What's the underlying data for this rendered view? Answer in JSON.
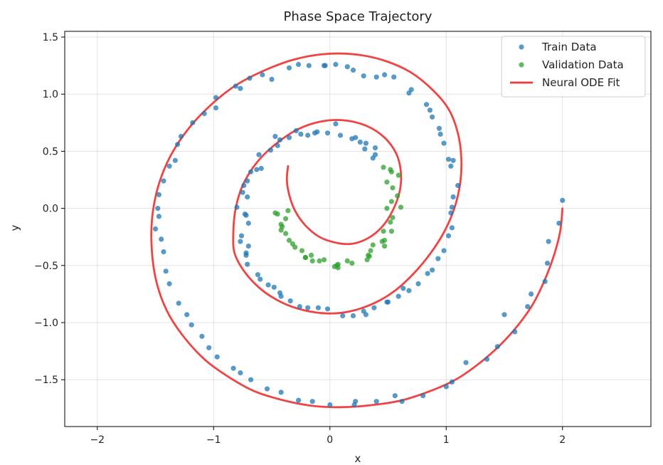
{
  "chart_data": {
    "type": "scatter",
    "title": "Phase Space Trajectory",
    "xlabel": "x",
    "ylabel": "y",
    "xlim": [
      -2.28,
      2.76
    ],
    "ylim": [
      -1.91,
      1.55
    ],
    "xticks": [
      -2,
      -1,
      0,
      1,
      2
    ],
    "yticks": [
      -1.5,
      -1.0,
      -0.5,
      0.0,
      0.5,
      1.0,
      1.5
    ],
    "xtick_labels": [
      "−2",
      "−1",
      "0",
      "1",
      "2"
    ],
    "ytick_labels": [
      "−1.5",
      "−1.0",
      "−0.5",
      "0.0",
      "0.5",
      "1.0",
      "1.5"
    ],
    "grid": true,
    "legend_position": "top-right",
    "series": [
      {
        "name": "Train Data",
        "kind": "points",
        "color": "#1f77b4",
        "points": [
          [
            2.0,
            0.07
          ],
          [
            1.97,
            -0.13
          ],
          [
            1.88,
            -0.29
          ],
          [
            1.87,
            -0.48
          ],
          [
            1.85,
            -0.64
          ],
          [
            1.73,
            -0.75
          ],
          [
            1.7,
            -0.86
          ],
          [
            1.59,
            -1.08
          ],
          [
            1.5,
            -0.93
          ],
          [
            1.44,
            -1.21
          ],
          [
            1.35,
            -1.32
          ],
          [
            1.17,
            -1.35
          ],
          [
            1.05,
            -1.52
          ],
          [
            1.0,
            -1.56
          ],
          [
            0.8,
            -1.64
          ],
          [
            0.62,
            -1.69
          ],
          [
            0.56,
            -1.64
          ],
          [
            0.4,
            -1.69
          ],
          [
            0.22,
            -1.69
          ],
          [
            0.21,
            -1.72
          ],
          [
            0.0,
            -1.72
          ],
          [
            -0.15,
            -1.69
          ],
          [
            -0.27,
            -1.68
          ],
          [
            -0.42,
            -1.61
          ],
          [
            -0.54,
            -1.58
          ],
          [
            -0.68,
            -1.5
          ],
          [
            -0.77,
            -1.44
          ],
          [
            -0.83,
            -1.4
          ],
          [
            -0.97,
            -1.3
          ],
          [
            -1.04,
            -1.22
          ],
          [
            -1.1,
            -1.12
          ],
          [
            -1.19,
            -1.02
          ],
          [
            -1.23,
            -0.93
          ],
          [
            -1.3,
            -0.83
          ],
          [
            -1.38,
            -0.66
          ],
          [
            -1.41,
            -0.55
          ],
          [
            -1.43,
            -0.38
          ],
          [
            -1.45,
            -0.27
          ],
          [
            -1.5,
            -0.18
          ],
          [
            -1.47,
            -0.07
          ],
          [
            -1.48,
            0.0
          ],
          [
            -1.47,
            0.12
          ],
          [
            -1.43,
            0.24
          ],
          [
            -1.38,
            0.37
          ],
          [
            -1.33,
            0.42
          ],
          [
            -1.31,
            0.56
          ],
          [
            -1.28,
            0.63
          ],
          [
            -1.18,
            0.75
          ],
          [
            -1.08,
            0.83
          ],
          [
            -0.98,
            0.88
          ],
          [
            -0.98,
            0.97
          ],
          [
            -0.81,
            1.07
          ],
          [
            -0.77,
            1.05
          ],
          [
            -0.69,
            1.14
          ],
          [
            -0.58,
            1.17
          ],
          [
            -0.5,
            1.13
          ],
          [
            -0.35,
            1.23
          ],
          [
            -0.27,
            1.26
          ],
          [
            -0.18,
            1.25
          ],
          [
            -0.05,
            1.25
          ],
          [
            -0.04,
            1.25
          ],
          [
            0.05,
            1.26
          ],
          [
            0.15,
            1.24
          ],
          [
            0.2,
            1.21
          ],
          [
            0.29,
            1.16
          ],
          [
            0.4,
            1.15
          ],
          [
            0.47,
            1.17
          ],
          [
            0.55,
            1.15
          ],
          [
            0.68,
            1.01
          ],
          [
            0.7,
            1.04
          ],
          [
            0.83,
            0.91
          ],
          [
            0.86,
            0.86
          ],
          [
            0.88,
            0.8
          ],
          [
            0.94,
            0.7
          ],
          [
            0.95,
            0.65
          ],
          [
            0.98,
            0.57
          ],
          [
            1.02,
            0.43
          ],
          [
            1.04,
            0.37
          ],
          [
            1.06,
            0.42
          ],
          [
            1.1,
            0.2
          ],
          [
            1.06,
            0.1
          ],
          [
            1.05,
            0.01
          ],
          [
            1.04,
            -0.04
          ],
          [
            1.05,
            -0.17
          ],
          [
            1.02,
            -0.24
          ],
          [
            0.98,
            -0.37
          ],
          [
            0.93,
            -0.44
          ],
          [
            0.88,
            -0.54
          ],
          [
            0.84,
            -0.57
          ],
          [
            0.76,
            -0.66
          ],
          [
            0.68,
            -0.72
          ],
          [
            0.63,
            -0.7
          ],
          [
            0.59,
            -0.77
          ],
          [
            0.5,
            -0.82
          ],
          [
            0.49,
            -0.82
          ],
          [
            0.38,
            -0.87
          ],
          [
            0.31,
            -0.93
          ],
          [
            0.29,
            -0.9
          ],
          [
            0.2,
            -0.94
          ],
          [
            0.11,
            -0.94
          ],
          [
            -0.02,
            -0.88
          ],
          [
            -0.1,
            -0.87
          ],
          [
            -0.19,
            -0.87
          ],
          [
            -0.26,
            -0.86
          ],
          [
            -0.34,
            -0.81
          ],
          [
            -0.42,
            -0.77
          ],
          [
            -0.43,
            -0.74
          ],
          [
            -0.48,
            -0.69
          ],
          [
            -0.53,
            -0.67
          ],
          [
            -0.6,
            -0.62
          ],
          [
            -0.62,
            -0.58
          ],
          [
            -0.71,
            -0.49
          ],
          [
            -0.72,
            -0.39
          ],
          [
            -0.72,
            -0.41
          ],
          [
            -0.77,
            -0.29
          ],
          [
            -0.76,
            -0.24
          ],
          [
            -0.7,
            -0.33
          ],
          [
            -0.7,
            -0.13
          ],
          [
            -0.72,
            -0.06
          ],
          [
            -0.73,
            -0.05
          ],
          [
            -0.8,
            0.01
          ],
          [
            -0.71,
            0.1
          ],
          [
            -0.75,
            0.14
          ],
          [
            -0.74,
            0.2
          ],
          [
            -0.71,
            0.24
          ],
          [
            -0.68,
            0.32
          ],
          [
            -0.63,
            0.34
          ],
          [
            -0.59,
            0.35
          ],
          [
            -0.61,
            0.47
          ],
          [
            -0.51,
            0.51
          ],
          [
            -0.45,
            0.55
          ],
          [
            -0.47,
            0.63
          ],
          [
            -0.43,
            0.6
          ],
          [
            -0.35,
            0.62
          ],
          [
            -0.29,
            0.68
          ],
          [
            -0.25,
            0.65
          ],
          [
            -0.19,
            0.64
          ],
          [
            -0.13,
            0.66
          ],
          [
            -0.11,
            0.67
          ],
          [
            -0.02,
            0.66
          ],
          [
            0.05,
            0.74
          ],
          [
            0.09,
            0.64
          ],
          [
            0.19,
            0.61
          ],
          [
            0.22,
            0.62
          ],
          [
            0.26,
            0.58
          ],
          [
            0.3,
            0.52
          ],
          [
            0.31,
            0.57
          ],
          [
            0.37,
            0.44
          ],
          [
            0.39,
            0.47
          ],
          [
            0.39,
            0.53
          ]
        ]
      },
      {
        "name": "Validation Data",
        "kind": "points",
        "color": "#2ca02c",
        "points": [
          [
            0.46,
            0.36
          ],
          [
            0.52,
            0.34
          ],
          [
            0.53,
            0.32
          ],
          [
            0.59,
            0.29
          ],
          [
            0.49,
            0.23
          ],
          [
            0.54,
            0.18
          ],
          [
            0.58,
            0.11
          ],
          [
            0.53,
            0.06
          ],
          [
            0.61,
            0.01
          ],
          [
            0.49,
            0.0
          ],
          [
            0.54,
            -0.08
          ],
          [
            0.52,
            -0.12
          ],
          [
            0.46,
            -0.2
          ],
          [
            0.53,
            -0.2
          ],
          [
            0.47,
            -0.28
          ],
          [
            0.45,
            -0.29
          ],
          [
            0.47,
            -0.33
          ],
          [
            0.37,
            -0.32
          ],
          [
            0.35,
            -0.37
          ],
          [
            0.33,
            -0.41
          ],
          [
            0.34,
            -0.42
          ],
          [
            0.32,
            -0.45
          ],
          [
            0.19,
            -0.48
          ],
          [
            0.15,
            -0.46
          ],
          [
            0.07,
            -0.49
          ],
          [
            0.06,
            -0.5
          ],
          [
            0.07,
            -0.52
          ],
          [
            0.04,
            -0.51
          ],
          [
            -0.05,
            -0.45
          ],
          [
            -0.09,
            -0.46
          ],
          [
            -0.15,
            -0.46
          ],
          [
            -0.16,
            -0.41
          ],
          [
            -0.21,
            -0.43
          ],
          [
            -0.21,
            -0.43
          ],
          [
            -0.24,
            -0.37
          ],
          [
            -0.3,
            -0.34
          ],
          [
            -0.32,
            -0.31
          ],
          [
            -0.35,
            -0.28
          ],
          [
            -0.38,
            -0.22
          ],
          [
            -0.42,
            -0.19
          ],
          [
            -0.41,
            -0.16
          ],
          [
            -0.42,
            -0.14
          ],
          [
            -0.38,
            -0.09
          ],
          [
            -0.45,
            -0.05
          ],
          [
            -0.47,
            -0.04
          ],
          [
            -0.36,
            -0.02
          ]
        ]
      },
      {
        "name": "Neural ODE Fit",
        "kind": "line",
        "color": "#ee3a3a",
        "points": [
          [
            2.0,
            0.0
          ],
          [
            1.98,
            -0.2
          ],
          [
            1.93,
            -0.4
          ],
          [
            1.85,
            -0.62
          ],
          [
            1.75,
            -0.83
          ],
          [
            1.62,
            -1.02
          ],
          [
            1.46,
            -1.2
          ],
          [
            1.28,
            -1.36
          ],
          [
            1.08,
            -1.5
          ],
          [
            0.86,
            -1.6
          ],
          [
            0.62,
            -1.68
          ],
          [
            0.38,
            -1.72
          ],
          [
            0.12,
            -1.74
          ],
          [
            -0.14,
            -1.73
          ],
          [
            -0.4,
            -1.68
          ],
          [
            -0.65,
            -1.6
          ],
          [
            -0.88,
            -1.47
          ],
          [
            -1.08,
            -1.32
          ],
          [
            -1.26,
            -1.12
          ],
          [
            -1.4,
            -0.9
          ],
          [
            -1.49,
            -0.65
          ],
          [
            -1.53,
            -0.38
          ],
          [
            -1.53,
            -0.1
          ],
          [
            -1.48,
            0.18
          ],
          [
            -1.38,
            0.44
          ],
          [
            -1.23,
            0.68
          ],
          [
            -1.04,
            0.89
          ],
          [
            -0.82,
            1.07
          ],
          [
            -0.58,
            1.2
          ],
          [
            -0.32,
            1.3
          ],
          [
            -0.06,
            1.35
          ],
          [
            0.2,
            1.35
          ],
          [
            0.45,
            1.3
          ],
          [
            0.68,
            1.2
          ],
          [
            0.87,
            1.05
          ],
          [
            1.02,
            0.87
          ],
          [
            1.1,
            0.66
          ],
          [
            1.13,
            0.44
          ],
          [
            1.12,
            0.22
          ],
          [
            1.07,
            0.0
          ],
          [
            0.98,
            -0.21
          ],
          [
            0.86,
            -0.4
          ],
          [
            0.72,
            -0.57
          ],
          [
            0.56,
            -0.72
          ],
          [
            0.38,
            -0.83
          ],
          [
            0.18,
            -0.9
          ],
          [
            -0.02,
            -0.92
          ],
          [
            -0.23,
            -0.89
          ],
          [
            -0.42,
            -0.82
          ],
          [
            -0.59,
            -0.71
          ],
          [
            -0.73,
            -0.56
          ],
          [
            -0.82,
            -0.39
          ],
          [
            -0.83,
            -0.2
          ],
          [
            -0.81,
            0.0
          ],
          [
            -0.75,
            0.2
          ],
          [
            -0.63,
            0.4
          ],
          [
            -0.47,
            0.56
          ],
          [
            -0.28,
            0.69
          ],
          [
            -0.08,
            0.76
          ],
          [
            0.13,
            0.77
          ],
          [
            0.32,
            0.72
          ],
          [
            0.47,
            0.62
          ],
          [
            0.57,
            0.48
          ],
          [
            0.61,
            0.32
          ],
          [
            0.6,
            0.15
          ],
          [
            0.54,
            -0.02
          ],
          [
            0.45,
            -0.16
          ],
          [
            0.33,
            -0.26
          ],
          [
            0.19,
            -0.31
          ],
          [
            0.05,
            -0.3
          ],
          [
            -0.09,
            -0.25
          ],
          [
            -0.21,
            -0.15
          ],
          [
            -0.3,
            -0.02
          ],
          [
            -0.35,
            0.12
          ],
          [
            -0.37,
            0.25
          ],
          [
            -0.36,
            0.37
          ]
        ]
      }
    ]
  }
}
